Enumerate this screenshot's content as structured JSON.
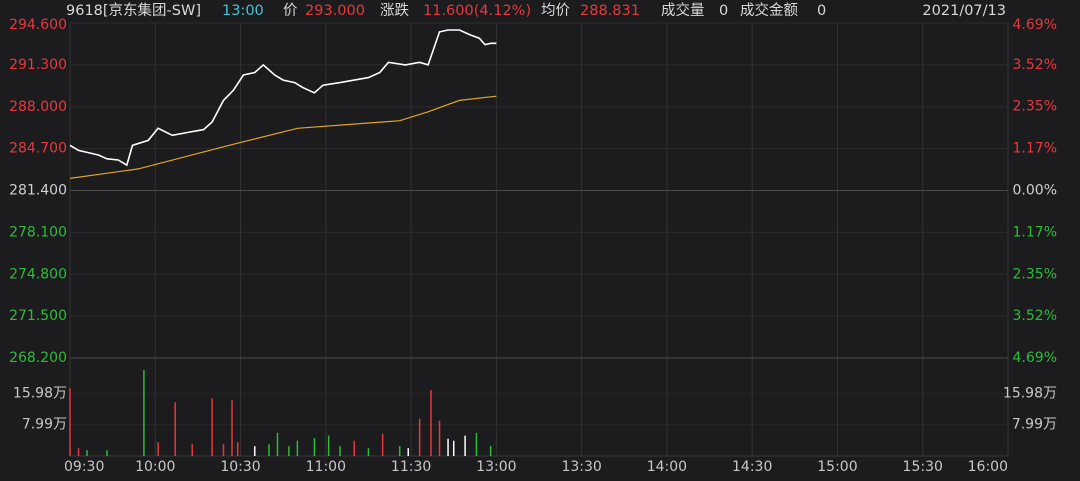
{
  "header": {
    "symbol": "9618[京东集团-SW]",
    "time": "13:00",
    "price_label": "价",
    "price": "293.000",
    "change_label": "涨跌",
    "change": "11.600(4.12%)",
    "avg_label": "均价",
    "avg": "288.831",
    "volume_label": "成交量",
    "volume": "0",
    "amount_label": "成交金额",
    "amount": "0",
    "date": "2021/07/13"
  },
  "chart_data": {
    "type": "line",
    "xlim": [
      0,
      330
    ],
    "xticks": [
      {
        "value": 0,
        "label": "09:30"
      },
      {
        "value": 30,
        "label": "10:00"
      },
      {
        "value": 60,
        "label": "10:30"
      },
      {
        "value": 90,
        "label": "11:00"
      },
      {
        "value": 120,
        "label": "11:30"
      },
      {
        "value": 150,
        "label": "13:00"
      },
      {
        "value": 180,
        "label": "13:30"
      },
      {
        "value": 210,
        "label": "14:00"
      },
      {
        "value": 240,
        "label": "14:30"
      },
      {
        "value": 270,
        "label": "15:00"
      },
      {
        "value": 300,
        "label": "15:30"
      },
      {
        "value": 330,
        "label": "16:00"
      }
    ],
    "ylim": [
      268.2,
      294.6
    ],
    "yticks": [
      {
        "value": 294.6,
        "label": "294.600"
      },
      {
        "value": 291.3,
        "label": "291.300"
      },
      {
        "value": 288,
        "label": "288.000"
      },
      {
        "value": 284.7,
        "label": "284.700"
      },
      {
        "value": 281.4,
        "label": "281.400"
      },
      {
        "value": 278.1,
        "label": "278.100"
      },
      {
        "value": 274.8,
        "label": "274.800"
      },
      {
        "value": 271.5,
        "label": "271.500"
      },
      {
        "value": 268.2,
        "label": "268.200"
      }
    ],
    "y2lim": [
      -4.69,
      4.69
    ],
    "y2ticks": [
      {
        "value": 4.69,
        "label": "4.69%"
      },
      {
        "value": 3.52,
        "label": "3.52%"
      },
      {
        "value": 2.35,
        "label": "2.35%"
      },
      {
        "value": 1.17,
        "label": "1.17%"
      },
      {
        "value": 0,
        "label": "0.00%"
      },
      {
        "value": -1.17,
        "label": "1.17%"
      },
      {
        "value": -2.35,
        "label": "2.35%"
      },
      {
        "value": -3.52,
        "label": "3.52%"
      },
      {
        "value": -4.69,
        "label": "4.69%"
      }
    ],
    "up_color": "#e8383d",
    "down_color": "#2dbb3a",
    "flat_color": "#cfcfcf",
    "series": [
      {
        "color": "#ffffff",
        "x": [
          0,
          3,
          6,
          10,
          13,
          17,
          20,
          22,
          27.5,
          31,
          36,
          42,
          47,
          50,
          54,
          57.5,
          61,
          65,
          68,
          72,
          75,
          79,
          82,
          86,
          89,
          95,
          100,
          105,
          109,
          112,
          118,
          123,
          126,
          130,
          133,
          137,
          141,
          144,
          146,
          148,
          150
        ],
        "values": [
          284.96,
          284.56,
          284.4,
          284.2,
          283.9,
          283.8,
          283.4,
          284.96,
          285.35,
          286.3,
          285.75,
          286.0,
          286.2,
          286.8,
          288.5,
          289.3,
          290.5,
          290.7,
          291.3,
          290.5,
          290.1,
          289.9,
          289.5,
          289.1,
          289.7,
          289.9,
          290.1,
          290.3,
          290.7,
          291.5,
          291.3,
          291.5,
          291.3,
          293.9,
          294.05,
          294.05,
          293.65,
          293.4,
          292.9,
          293.0,
          293.0
        ]
      },
      {
        "color": "#e0a526",
        "x": [
          0,
          24,
          56,
          80,
          116,
          126,
          137,
          150
        ],
        "values": [
          282.35,
          283.1,
          284.96,
          286.3,
          286.9,
          287.6,
          288.5,
          288.83
        ]
      }
    ],
    "volume": {
      "ylim": [
        0,
        25
      ],
      "yticks": [
        {
          "value": 7.99,
          "label": "7.99万"
        },
        {
          "value": 15.98,
          "label": "15.98万"
        }
      ],
      "x": [
        0,
        3,
        6,
        13,
        26,
        31,
        37,
        43,
        50,
        54,
        57,
        59,
        65,
        70,
        73,
        77,
        80,
        86,
        91,
        95,
        100,
        105,
        110,
        116,
        119,
        123,
        127,
        130,
        133,
        135,
        139,
        143,
        148
      ],
      "values": [
        17.3,
        2.0,
        1.5,
        1.5,
        21.9,
        3.5,
        13.7,
        3.0,
        14.7,
        3.0,
        14.2,
        3.5,
        2.5,
        3.0,
        5.9,
        2.5,
        3.9,
        4.6,
        5.2,
        2.5,
        3.9,
        2.0,
        5.7,
        2.5,
        2.0,
        9.5,
        16.8,
        9.0,
        4.4,
        3.9,
        5.2,
        5.9,
        2.6
      ],
      "colors": [
        "#e8383d",
        "#e8383d",
        "#2dbb3a",
        "#2dbb3a",
        "#2dbb3a",
        "#e8383d",
        "#e8383d",
        "#e8383d",
        "#e8383d",
        "#e8383d",
        "#e8383d",
        "#e8383d",
        "#ffffff",
        "#2dbb3a",
        "#2dbb3a",
        "#2dbb3a",
        "#2dbb3a",
        "#2dbb3a",
        "#2dbb3a",
        "#2dbb3a",
        "#e8383d",
        "#2dbb3a",
        "#e8383d",
        "#2dbb3a",
        "#ffffff",
        "#e8383d",
        "#e8383d",
        "#e8383d",
        "#ffffff",
        "#ffffff",
        "#ffffff",
        "#2dbb3a",
        "#2dbb3a"
      ]
    }
  }
}
